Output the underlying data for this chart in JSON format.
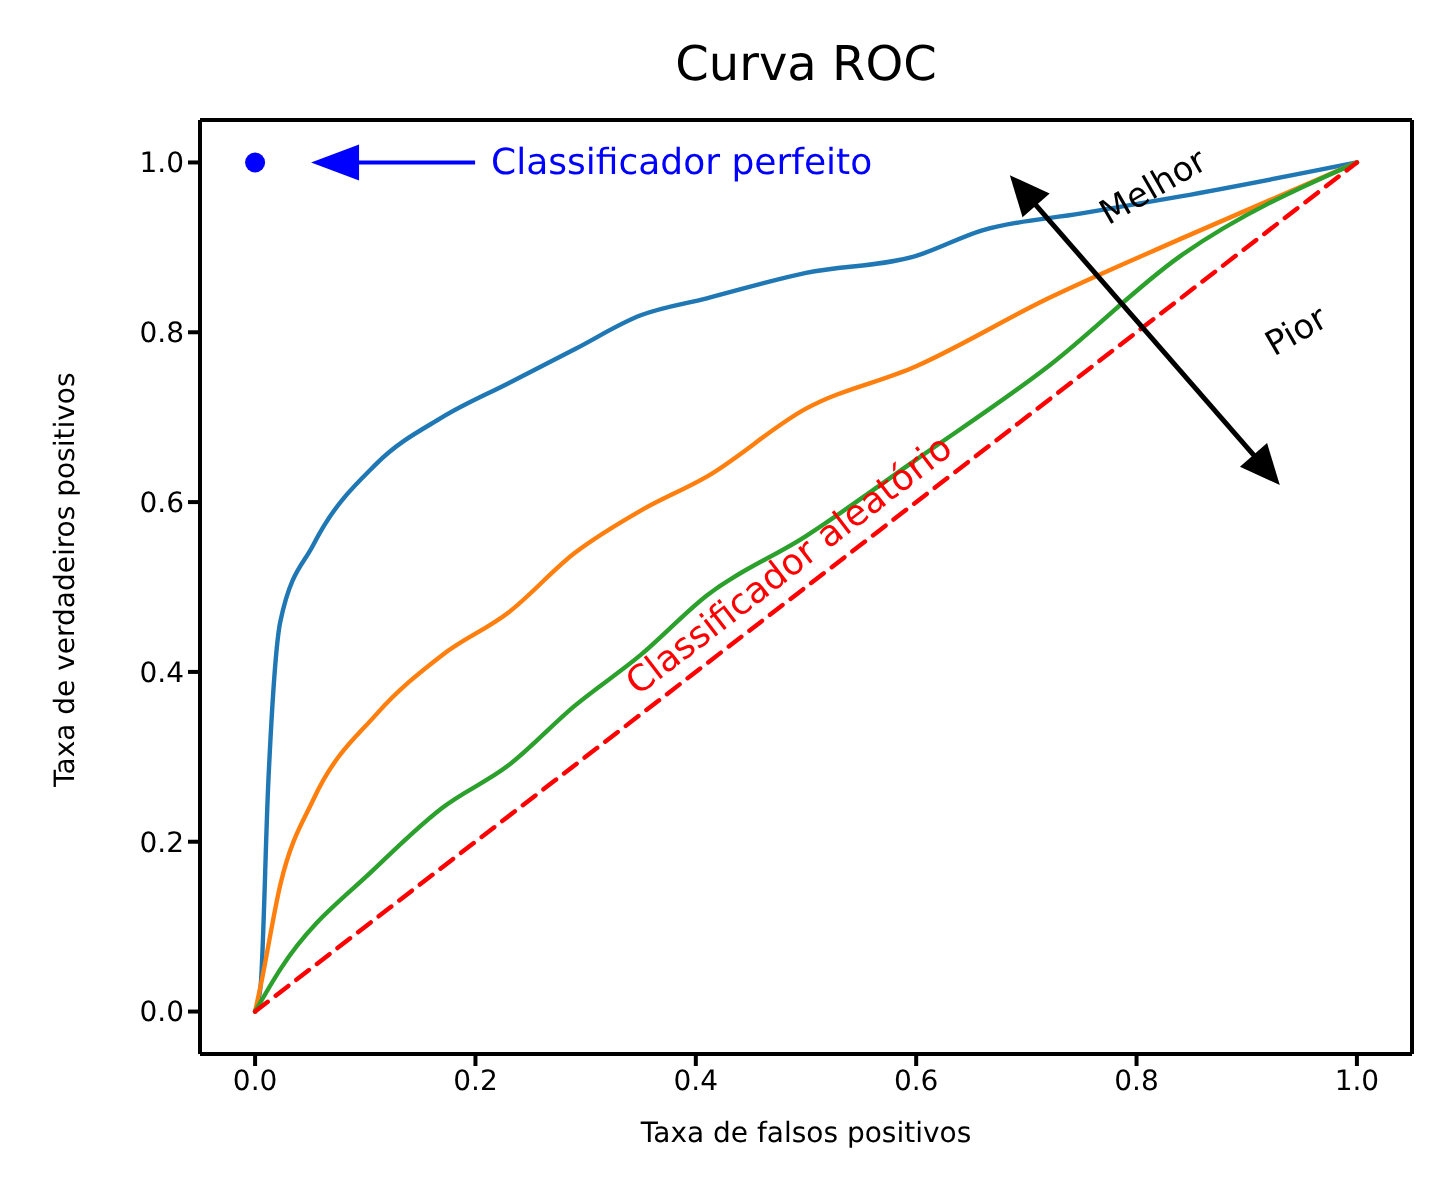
{
  "chart_data": {
    "type": "line",
    "title": "Curva ROC",
    "xlabel": "Taxa de falsos positivos",
    "ylabel": "Taxa de verdadeiros positivos",
    "xlim": [
      -0.05,
      1.05
    ],
    "ylim": [
      -0.05,
      1.05
    ],
    "xticks": [
      {
        "value": 0,
        "label": "0.0"
      },
      {
        "value": 0.2,
        "label": "0.2"
      },
      {
        "value": 0.4,
        "label": "0.4"
      },
      {
        "value": 0.6,
        "label": "0.6"
      },
      {
        "value": 0.8,
        "label": "0.8"
      },
      {
        "value": 1,
        "label": "1.0"
      }
    ],
    "yticks": [
      {
        "value": 0,
        "label": "0.0"
      },
      {
        "value": 0.2,
        "label": "0.2"
      },
      {
        "value": 0.4,
        "label": "0.4"
      },
      {
        "value": 0.6,
        "label": "0.6"
      },
      {
        "value": 0.8,
        "label": "0.8"
      },
      {
        "value": 1,
        "label": "1.0"
      }
    ],
    "grid": false,
    "marker": "none",
    "series": [
      {
        "color": "#1f77b4",
        "x": [
          0,
          0.005,
          0.012,
          0.023,
          0.053,
          0.11,
          0.17,
          0.23,
          0.29,
          0.35,
          0.41,
          0.5,
          0.6,
          0.66,
          0.75,
          0.84,
          1
        ],
        "values": [
          0,
          0.03,
          0.27,
          0.46,
          0.55,
          0.645,
          0.7,
          0.74,
          0.78,
          0.82,
          0.84,
          0.87,
          0.89,
          0.92,
          0.94,
          0.96,
          1
        ]
      },
      {
        "color": "#ff7f0e",
        "x": [
          0,
          0.005,
          0.023,
          0.053,
          0.11,
          0.17,
          0.23,
          0.29,
          0.35,
          0.41,
          0.5,
          0.6,
          0.72,
          0.84,
          1
        ],
        "values": [
          0,
          0.03,
          0.15,
          0.25,
          0.35,
          0.42,
          0.47,
          0.54,
          0.59,
          0.63,
          0.71,
          0.76,
          0.84,
          0.91,
          1
        ]
      },
      {
        "color": "#2ca02c",
        "x": [
          0,
          0.023,
          0.11,
          0.17,
          0.23,
          0.29,
          0.35,
          0.41,
          0.5,
          0.6,
          0.72,
          0.84,
          1
        ],
        "values": [
          0,
          0.05,
          0.17,
          0.24,
          0.29,
          0.36,
          0.42,
          0.49,
          0.56,
          0.65,
          0.76,
          0.89,
          1
        ]
      },
      {
        "color": "#ff0000",
        "line_style": "dashed",
        "x": [
          0,
          0.5,
          1
        ],
        "values": [
          0,
          0.5,
          1
        ]
      },
      {
        "type": "scatter",
        "color": "#0000ff",
        "marker": "circle",
        "x": [
          0
        ],
        "values": [
          1
        ]
      }
    ],
    "annotations": [
      "Classificador perfeito",
      {
        "text": "Classificador aleatório",
        "x": 0.5,
        "y": 0.5
      },
      "Melhor",
      "Pior"
    ]
  }
}
